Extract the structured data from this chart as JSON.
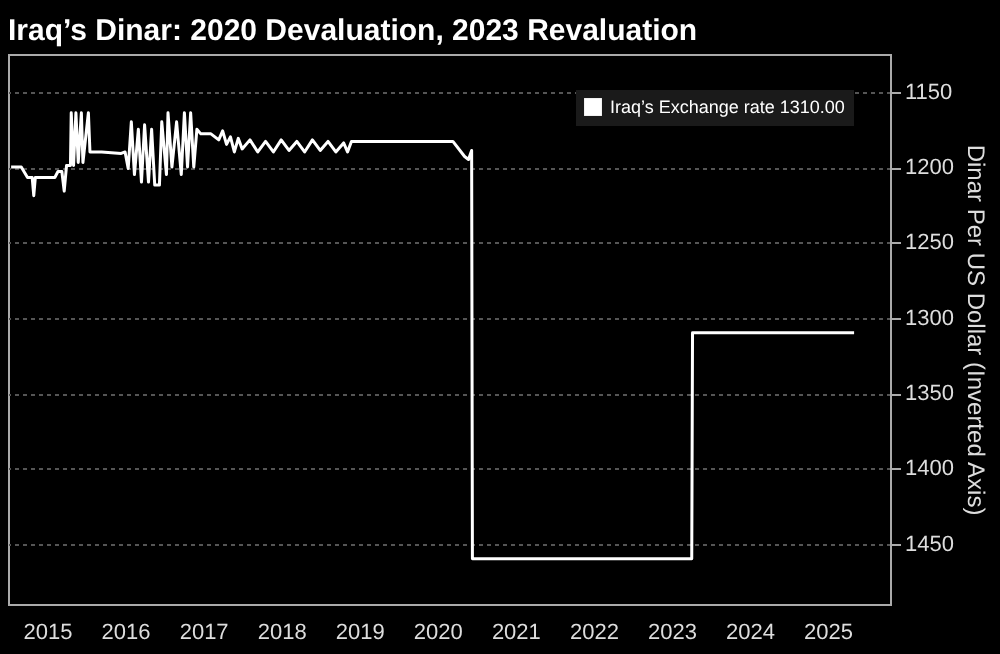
{
  "chart_data": {
    "type": "line",
    "title": "Iraq’s Dinar: 2020 Devaluation, 2023 Revaluation",
    "ylabel": "Dinar Per US Dollar (Inverted Axis)",
    "xlim": [
      2015.0,
      2026.3
    ],
    "ylim": [
      1490,
      1125
    ],
    "xticks": [
      {
        "value": 2015.5,
        "label": "2015"
      },
      {
        "value": 2016.5,
        "label": "2016"
      },
      {
        "value": 2017.5,
        "label": "2017"
      },
      {
        "value": 2018.5,
        "label": "2018"
      },
      {
        "value": 2019.5,
        "label": "2019"
      },
      {
        "value": 2020.5,
        "label": "2020"
      },
      {
        "value": 2021.5,
        "label": "2021"
      },
      {
        "value": 2022.5,
        "label": "2022"
      },
      {
        "value": 2023.5,
        "label": "2023"
      },
      {
        "value": 2024.5,
        "label": "2024"
      },
      {
        "value": 2025.5,
        "label": "2025"
      }
    ],
    "yticks": [
      1150,
      1200,
      1250,
      1300,
      1350,
      1400,
      1450
    ],
    "grid": "y",
    "legend": "top right",
    "line_style": "solid",
    "marker": "none",
    "series": [
      {
        "name": "Iraq’s Exchange rate 1310.00",
        "color": "#ffffff",
        "x": [
          2015.04,
          2015.17,
          2015.25,
          2015.31,
          2015.33,
          2015.35,
          2015.6,
          2015.64,
          2015.69,
          2015.72,
          2015.75,
          2015.8,
          2015.81,
          2015.84,
          2015.87,
          2015.9,
          2015.94,
          2015.96,
          2016.03,
          2016.05,
          2016.2,
          2016.45,
          2016.5,
          2016.54,
          2016.58,
          2016.62,
          2016.67,
          2016.71,
          2016.75,
          2016.8,
          2016.84,
          2016.88,
          2016.94,
          2016.97,
          2017.03,
          2017.05,
          2017.1,
          2017.16,
          2017.22,
          2017.26,
          2017.3,
          2017.34,
          2017.38,
          2017.42,
          2017.47,
          2017.6,
          2017.7,
          2017.75,
          2017.8,
          2017.85,
          2017.9,
          2017.95,
          2018.0,
          2018.1,
          2018.2,
          2018.3,
          2018.4,
          2018.5,
          2018.6,
          2018.7,
          2018.8,
          2018.9,
          2019.0,
          2019.1,
          2019.2,
          2019.3,
          2019.35,
          2019.4,
          2020.7,
          2020.85,
          2020.9,
          2020.94,
          2020.95,
          2023.76,
          2023.77,
          2025.84
        ],
        "values": [
          1200,
          1200,
          1207,
          1207,
          1219,
          1207,
          1207,
          1203,
          1203,
          1216,
          1199,
          1199,
          1164,
          1199,
          1164,
          1197,
          1164,
          1197,
          1164,
          1190,
          1190,
          1191,
          1190,
          1201,
          1170,
          1205,
          1175,
          1210,
          1172,
          1210,
          1175,
          1212,
          1212,
          1170,
          1205,
          1164,
          1200,
          1170,
          1205,
          1164,
          1200,
          1164,
          1200,
          1175,
          1178,
          1178,
          1182,
          1176,
          1185,
          1180,
          1190,
          1181,
          1188,
          1182,
          1190,
          1183,
          1190,
          1182,
          1189,
          1183,
          1190,
          1182,
          1189,
          1183,
          1190,
          1184,
          1190,
          1183,
          1183,
          1193,
          1195,
          1189,
          1460,
          1460,
          1310,
          1310
        ]
      }
    ]
  }
}
